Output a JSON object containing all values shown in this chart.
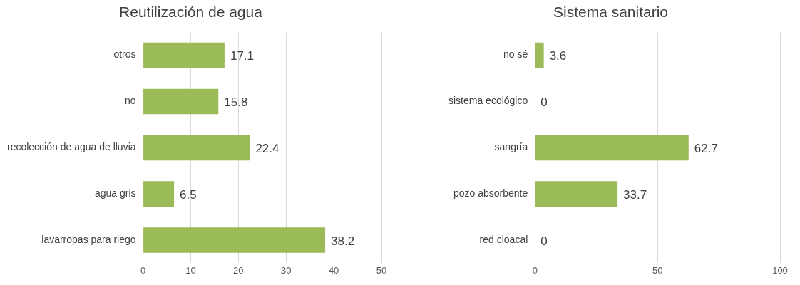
{
  "chart_data": [
    {
      "type": "bar",
      "orientation": "horizontal",
      "title": "Reutilización de agua",
      "categories": [
        "otros",
        "no",
        "recolección de agua de lluvia",
        "agua gris",
        "lavarropas para riego"
      ],
      "values": [
        17.1,
        15.8,
        22.4,
        6.5,
        38.2
      ],
      "color": "#9bbb59",
      "xlim": [
        0,
        50
      ],
      "xticks": [
        0,
        10,
        20,
        30,
        40,
        50
      ],
      "grid": "x",
      "data_labels": true,
      "legend": false
    },
    {
      "type": "bar",
      "orientation": "horizontal",
      "title": "Sistema sanitario",
      "categories": [
        "no sé",
        "sistema ecológico",
        "sangría",
        "pozo absorbente",
        "red cloacal"
      ],
      "values": [
        3.6,
        0,
        62.7,
        33.7,
        0
      ],
      "color": "#9bbb59",
      "xlim": [
        0,
        100
      ],
      "xticks": [
        0,
        50,
        100
      ],
      "grid": "x",
      "data_labels": true,
      "legend": false
    }
  ]
}
